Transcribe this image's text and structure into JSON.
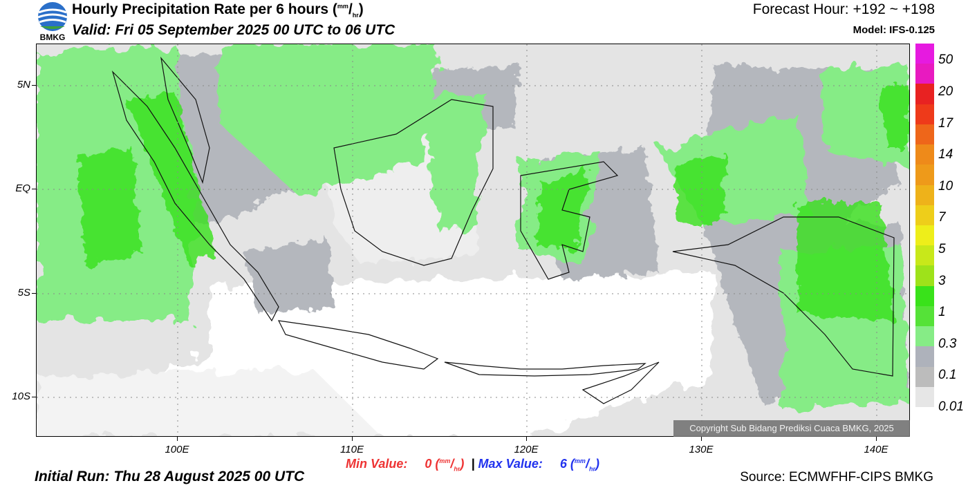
{
  "header": {
    "title": "Hourly Precipitation Rate per 6 hours",
    "title_unit_num": "mm",
    "title_unit_den": "hr",
    "valid": "Valid: Fri 05 September 2025 00 UTC to 06 UTC",
    "forecast_hour": "Forecast Hour: +192 ~ +198",
    "model": "Model: IFS-0.125",
    "logo_text": "BMKG"
  },
  "map": {
    "lat_labels": [
      "5N",
      "EQ",
      "5S",
      "10S"
    ],
    "lon_labels": [
      "100E",
      "110E",
      "120E",
      "130E",
      "140E"
    ],
    "copyright": "Copyright Sub Bidang Prediksi Cuaca BMKG, 2025"
  },
  "colorbar": {
    "colors": [
      "#e6e6e6",
      "#bcbcbc",
      "#aeb2bb",
      "#86ec86",
      "#55e238",
      "#39e21a",
      "#9ee21a",
      "#c8e81a",
      "#eeee1a",
      "#eece1a",
      "#eeb21a",
      "#ee9a1a",
      "#ee8a1a",
      "#ee661a",
      "#ee3a1a",
      "#e82222",
      "#e81ac0",
      "#e61ae0"
    ],
    "labels": [
      "0.01",
      "0.1",
      "0.3",
      "1",
      "3",
      "5",
      "7",
      "10",
      "14",
      "17",
      "20",
      "50"
    ]
  },
  "footer": {
    "min_label": "Min Value:",
    "min_value": "0",
    "max_label": "Max Value:",
    "max_value": "6",
    "separator": "|",
    "unit_num": "mm",
    "unit_den": "hr",
    "initial_run": "Initial Run: Thu 28 August 2025 00 UTC",
    "source": "Source: ECMWFHF-CIPS BMKG"
  }
}
